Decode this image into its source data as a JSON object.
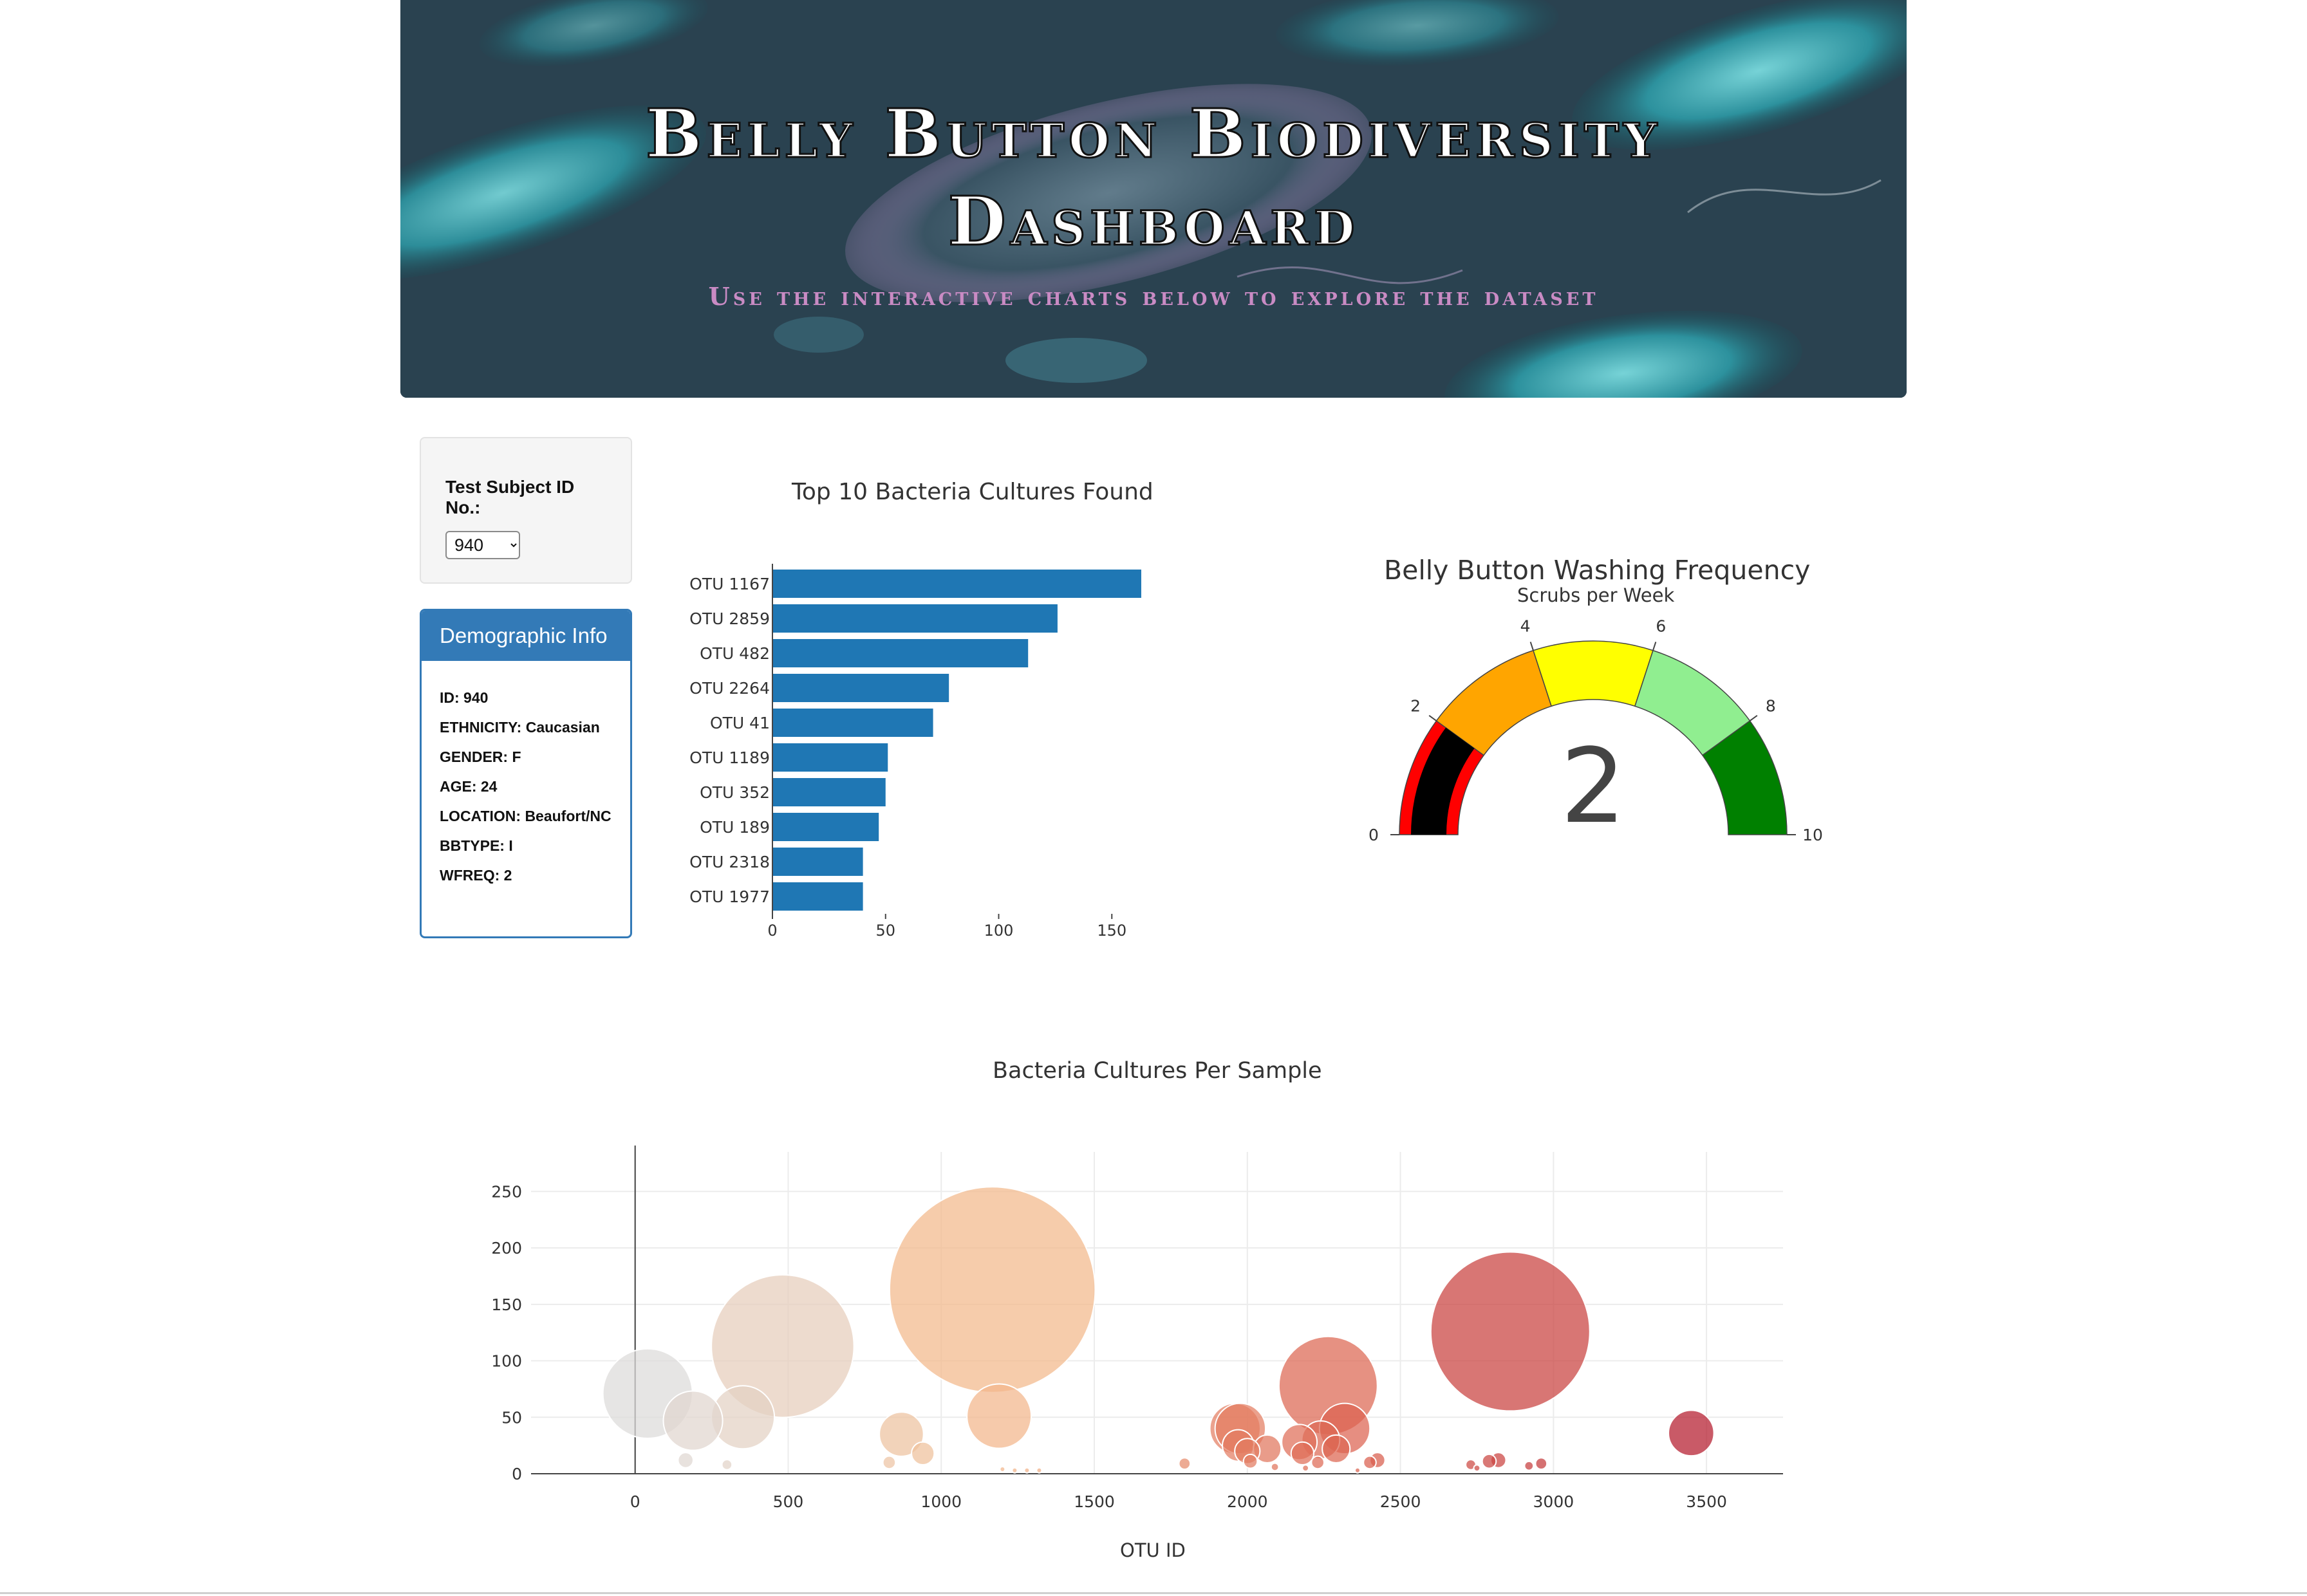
{
  "header": {
    "title_line1": "Belly Button Biodiversity",
    "title_line2": "Dashboard",
    "subtitle": "Use the interactive charts below to explore the dataset"
  },
  "selector": {
    "label": "Test Subject ID No.:",
    "selected": "940"
  },
  "demographics": {
    "heading": "Demographic Info",
    "items": [
      "ID: 940",
      "ETHNICITY: Caucasian",
      "GENDER: F",
      "AGE: 24",
      "LOCATION: Beaufort/NC",
      "BBTYPE: I",
      "WFREQ: 2"
    ]
  },
  "colors": {
    "accent": "#337ab7",
    "bar": "#1f77b4"
  },
  "chart_data": [
    {
      "type": "bar",
      "orientation": "horizontal",
      "title": "Top 10 Bacteria Cultures Found",
      "categories": [
        "OTU 1167",
        "OTU 2859",
        "OTU 482",
        "OTU 2264",
        "OTU 41",
        "OTU 1189",
        "OTU 352",
        "OTU 189",
        "OTU 2318",
        "OTU 1977"
      ],
      "values": [
        163,
        126,
        113,
        78,
        71,
        51,
        50,
        47,
        40,
        40
      ],
      "xlim": [
        0,
        165
      ],
      "xticks": [
        0,
        50,
        100,
        150
      ],
      "color": "#1f77b4"
    },
    {
      "type": "gauge",
      "title": "Belly Button Washing Frequency",
      "subtitle": "Scrubs per Week",
      "value": 2,
      "range": [
        0,
        10
      ],
      "ticks": [
        0,
        2,
        4,
        6,
        8,
        10
      ],
      "steps": [
        {
          "from": 0,
          "to": 2,
          "color": "#ff0000"
        },
        {
          "from": 2,
          "to": 4,
          "color": "#ffa500"
        },
        {
          "from": 4,
          "to": 6,
          "color": "#ffff00"
        },
        {
          "from": 6,
          "to": 8,
          "color": "#90ee90"
        },
        {
          "from": 8,
          "to": 10,
          "color": "#008000"
        }
      ],
      "bar_color": "#000000"
    },
    {
      "type": "scatter",
      "subtype": "bubble",
      "title": "Bacteria Cultures Per Sample",
      "xlabel": "OTU ID",
      "xlim": [
        -340,
        3750
      ],
      "ylim": [
        0,
        285
      ],
      "xticks": [
        0,
        500,
        1000,
        1500,
        2000,
        2500,
        3000,
        3500
      ],
      "yticks": [
        0,
        50,
        100,
        150,
        200,
        250
      ],
      "points": [
        {
          "x": 41,
          "y": 71
        },
        {
          "x": 189,
          "y": 47
        },
        {
          "x": 352,
          "y": 50
        },
        {
          "x": 482,
          "y": 113
        },
        {
          "x": 165,
          "y": 12
        },
        {
          "x": 300,
          "y": 8
        },
        {
          "x": 830,
          "y": 10
        },
        {
          "x": 870,
          "y": 35
        },
        {
          "x": 940,
          "y": 18
        },
        {
          "x": 1167,
          "y": 163
        },
        {
          "x": 1189,
          "y": 51
        },
        {
          "x": 1200,
          "y": 4
        },
        {
          "x": 1240,
          "y": 3
        },
        {
          "x": 1280,
          "y": 3
        },
        {
          "x": 1320,
          "y": 3
        },
        {
          "x": 1795,
          "y": 9
        },
        {
          "x": 1960,
          "y": 40
        },
        {
          "x": 1970,
          "y": 25
        },
        {
          "x": 1977,
          "y": 40
        },
        {
          "x": 2000,
          "y": 20
        },
        {
          "x": 2010,
          "y": 11
        },
        {
          "x": 2065,
          "y": 22
        },
        {
          "x": 2090,
          "y": 6
        },
        {
          "x": 2170,
          "y": 28
        },
        {
          "x": 2180,
          "y": 18
        },
        {
          "x": 2190,
          "y": 5
        },
        {
          "x": 2230,
          "y": 10
        },
        {
          "x": 2240,
          "y": 30
        },
        {
          "x": 2264,
          "y": 78
        },
        {
          "x": 2290,
          "y": 22
        },
        {
          "x": 2318,
          "y": 40
        },
        {
          "x": 2360,
          "y": 3
        },
        {
          "x": 2400,
          "y": 10
        },
        {
          "x": 2425,
          "y": 12
        },
        {
          "x": 2730,
          "y": 8
        },
        {
          "x": 2750,
          "y": 5
        },
        {
          "x": 2790,
          "y": 11
        },
        {
          "x": 2820,
          "y": 12
        },
        {
          "x": 2859,
          "y": 126
        },
        {
          "x": 2920,
          "y": 7
        },
        {
          "x": 2960,
          "y": 9
        },
        {
          "x": 3450,
          "y": 36
        }
      ]
    }
  ]
}
